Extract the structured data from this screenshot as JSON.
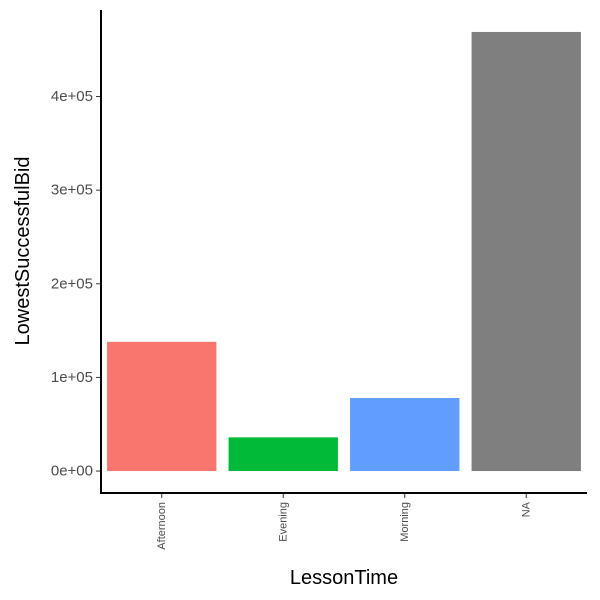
{
  "chart_data": {
    "type": "bar",
    "xlabel": "LessonTime",
    "ylabel": "LowestSuccessfulBid",
    "categories": [
      "Afternoon",
      "Evening",
      "Morning",
      "NA"
    ],
    "values": [
      138000,
      36000,
      78000,
      469000
    ],
    "colors": [
      "#F8766D",
      "#00BA38",
      "#619CFF",
      "#7F7F7F"
    ],
    "ylim": [
      -23450,
      492450
    ],
    "yticks": [
      {
        "value": 0,
        "label": "0e+00"
      },
      {
        "value": 100000,
        "label": "1e+05"
      },
      {
        "value": 200000,
        "label": "2e+05"
      },
      {
        "value": 300000,
        "label": "3e+05"
      },
      {
        "value": 400000,
        "label": "4e+05"
      }
    ],
    "grid": false,
    "legend": "none"
  }
}
